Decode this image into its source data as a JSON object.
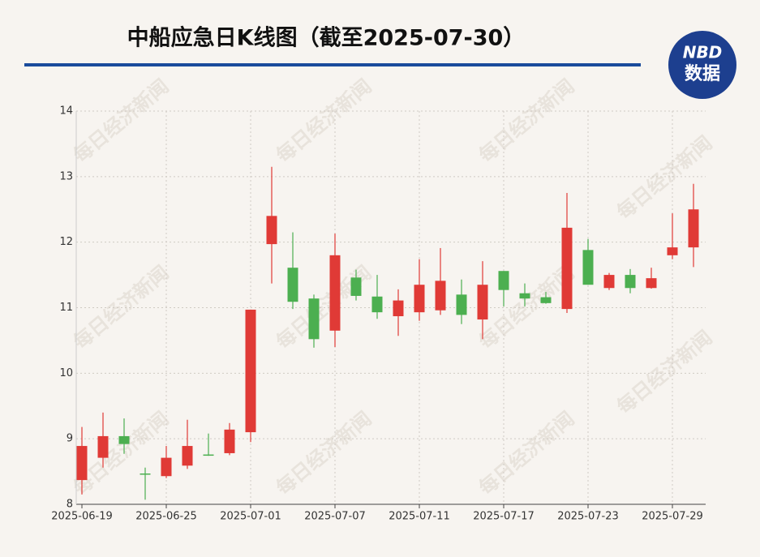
{
  "chart_data": {
    "type": "candlestick",
    "title": "中船应急日K线图（截至2025-07-30）",
    "logo": {
      "text": "NBD",
      "subtext": "数据"
    },
    "watermark": "每日经济新闻",
    "categories": [
      "2025-06-19",
      null,
      null,
      null,
      "2025-06-25",
      null,
      null,
      null,
      "2025-07-01",
      null,
      null,
      null,
      "2025-07-07",
      null,
      null,
      null,
      "2025-07-11",
      null,
      null,
      null,
      "2025-07-17",
      null,
      null,
      null,
      "2025-07-23",
      null,
      null,
      null,
      "2025-07-29",
      null
    ],
    "open": [
      8.37,
      8.71,
      9.04,
      8.47,
      8.43,
      8.59,
      8.76,
      8.78,
      9.1,
      11.97,
      11.61,
      11.14,
      10.65,
      11.46,
      11.17,
      10.87,
      10.93,
      10.96,
      11.2,
      10.82,
      11.56,
      11.22,
      11.16,
      10.98,
      11.88,
      11.3,
      11.5,
      11.3,
      11.8,
      11.92
    ],
    "high": [
      9.18,
      9.4,
      9.31,
      8.56,
      8.89,
      9.29,
      9.08,
      9.24,
      10.97,
      13.15,
      12.15,
      11.2,
      12.13,
      11.58,
      11.5,
      11.28,
      11.74,
      11.91,
      11.43,
      11.71,
      11.56,
      11.37,
      11.24,
      12.75,
      12.05,
      11.53,
      11.59,
      11.61,
      12.44,
      12.89
    ],
    "low": [
      8.15,
      8.56,
      8.77,
      8.07,
      8.4,
      8.54,
      8.74,
      8.75,
      8.95,
      11.37,
      10.98,
      10.39,
      10.4,
      11.11,
      10.83,
      10.57,
      10.8,
      10.89,
      10.75,
      10.52,
      11.02,
      11.02,
      11.06,
      10.92,
      11.35,
      11.27,
      11.22,
      11.29,
      11.74,
      11.62
    ],
    "close": [
      8.89,
      9.04,
      8.92,
      8.46,
      8.71,
      8.89,
      8.75,
      9.14,
      10.97,
      12.4,
      11.09,
      10.52,
      11.8,
      11.18,
      10.93,
      11.11,
      11.35,
      11.41,
      10.89,
      11.35,
      11.27,
      11.14,
      11.07,
      12.22,
      11.35,
      11.5,
      11.3,
      11.45,
      11.92,
      12.5
    ],
    "up_color": "#e03a36",
    "down_color": "#4caf50",
    "ylim": [
      8,
      14
    ],
    "yticks": [
      8,
      9,
      10,
      11,
      12,
      13,
      14
    ],
    "grid": true
  }
}
